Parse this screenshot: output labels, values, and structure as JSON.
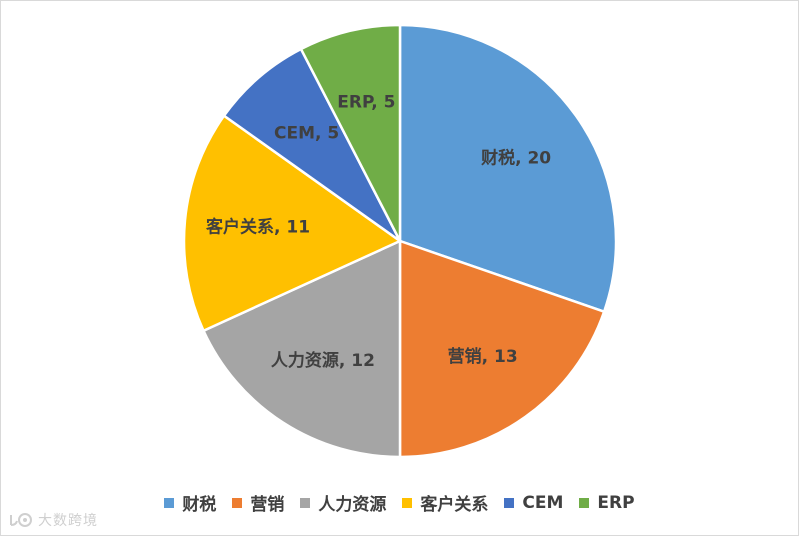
{
  "chart_data": {
    "type": "pie",
    "title": "",
    "categories": [
      "财税",
      "营销",
      "人力资源",
      "客户关系",
      "CEM",
      "ERP"
    ],
    "values": [
      20,
      13,
      12,
      11,
      5,
      5
    ],
    "data_labels": [
      "财税, 20",
      "营销, 13",
      "人力资源, 12",
      "客户关系, 11",
      "CEM, 5",
      "ERP, 5"
    ],
    "colors": [
      "#5b9bd5",
      "#ed7d31",
      "#a5a5a5",
      "#ffc000",
      "#4472c4",
      "#70ad47"
    ],
    "start_angle_deg": 0,
    "direction": "clockwise",
    "legend_position": "bottom"
  },
  "legend": {
    "items": [
      {
        "label": "财税",
        "color": "#5b9bd5"
      },
      {
        "label": "营销",
        "color": "#ed7d31"
      },
      {
        "label": "人力资源",
        "color": "#a5a5a5"
      },
      {
        "label": "客户关系",
        "color": "#ffc000"
      },
      {
        "label": "CEM",
        "color": "#4472c4"
      },
      {
        "label": "ERP",
        "color": "#70ad47"
      }
    ]
  },
  "watermark": {
    "text": "大数跨境",
    "icon": "logo-icon"
  }
}
